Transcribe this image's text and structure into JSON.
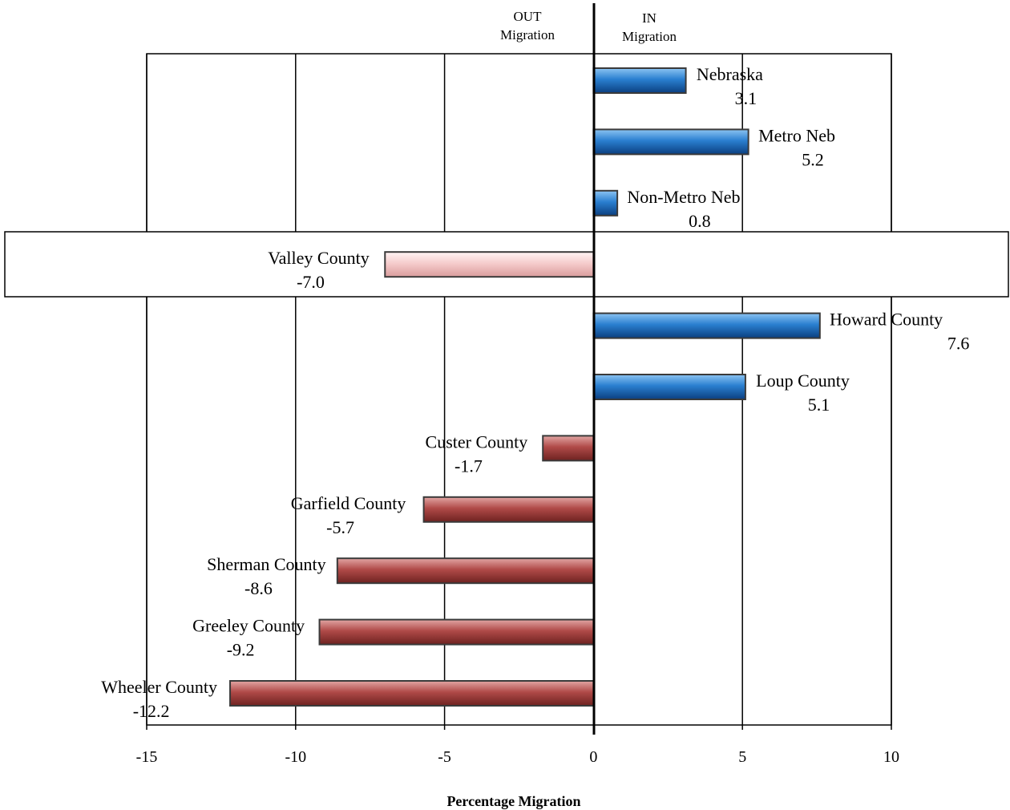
{
  "chart_data": {
    "type": "bar",
    "orientation": "horizontal",
    "xlabel": "Percentage Migration",
    "xlim": [
      -15,
      10
    ],
    "xticks": [
      "-15",
      "-10",
      "-5",
      "0",
      "5",
      "10"
    ],
    "grid": true,
    "direction_labels": {
      "out_line1": "OUT",
      "out_line2": "Migration",
      "in_line1": "IN",
      "in_line2": "Migration"
    },
    "categories": [
      "Nebraska",
      "Metro Neb",
      "Non-Metro Neb",
      "Valley County",
      "Howard County",
      "Loup County",
      "Custer County",
      "Garfield County",
      "Sherman County",
      "Greeley County",
      "Wheeler County"
    ],
    "values": [
      3.1,
      5.2,
      0.8,
      -7.0,
      7.6,
      5.1,
      -1.7,
      -5.7,
      -8.6,
      -9.2,
      -12.2
    ],
    "value_labels": [
      "3.1",
      "5.2",
      "0.8",
      "-7.0",
      "7.6",
      "5.1",
      "-1.7",
      "-5.7",
      "-8.6",
      "-9.2",
      "-12.2"
    ],
    "highlighted": "Valley County",
    "colors": {
      "positive": "#1f77d0",
      "negative": "#b04a48",
      "highlight": "#f4c8c8"
    }
  }
}
